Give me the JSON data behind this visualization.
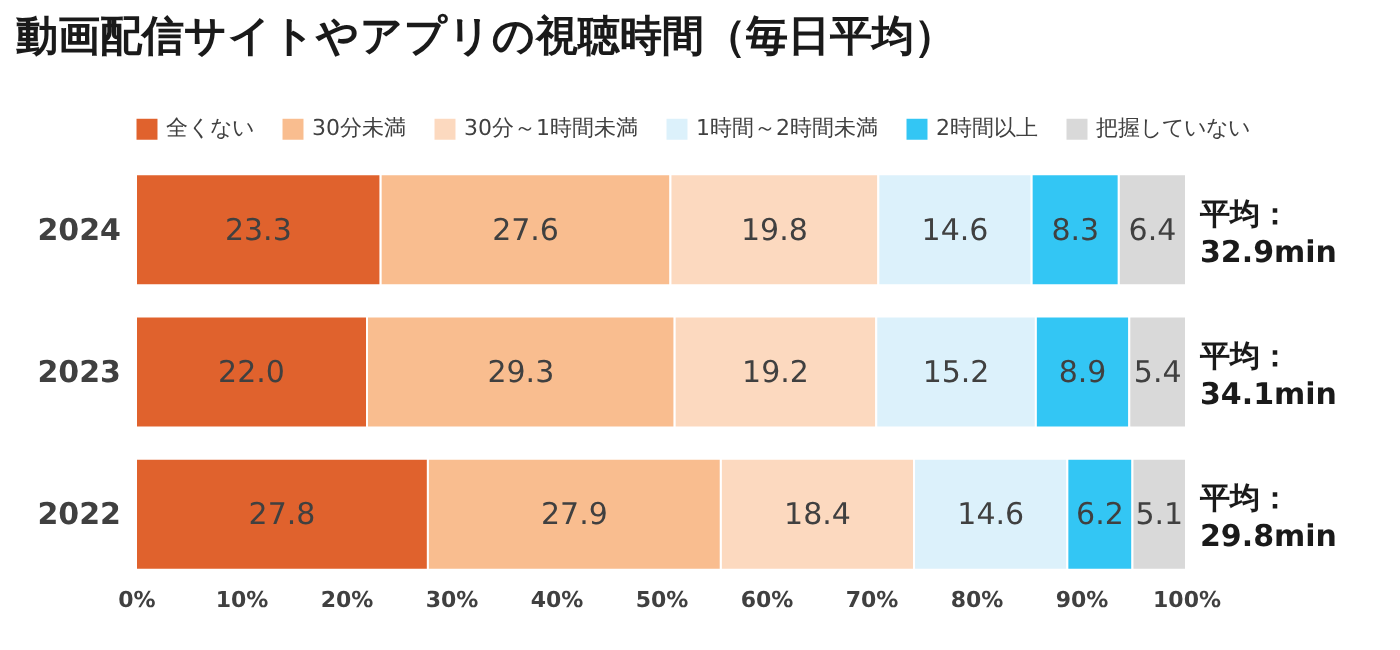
{
  "chart_data": {
    "type": "bar",
    "orientation": "horizontal",
    "stacked": true,
    "title": "動画配信サイトやアプリの視聴時間（毎日平均）",
    "categories": [
      "2024",
      "2023",
      "2022"
    ],
    "series": [
      {
        "name": "全くない",
        "color": "#e0622d",
        "values": [
          23.3,
          22.0,
          27.8
        ],
        "value_labels": [
          "23.3",
          "22.0",
          "27.8"
        ]
      },
      {
        "name": "30分未満",
        "color": "#f9bd8f",
        "values": [
          27.6,
          29.3,
          27.9
        ],
        "value_labels": [
          "27.6",
          "29.3",
          "27.9"
        ]
      },
      {
        "name": "30分～1時間未満",
        "color": "#fcd9bf",
        "values": [
          19.8,
          19.2,
          18.4
        ],
        "value_labels": [
          "19.8",
          "19.2",
          "18.4"
        ]
      },
      {
        "name": "1時間～2時間未満",
        "color": "#dcf1fb",
        "values": [
          14.6,
          15.2,
          14.6
        ],
        "value_labels": [
          "14.6",
          "15.2",
          "14.6"
        ]
      },
      {
        "name": "2時間以上",
        "color": "#33c6f4",
        "values": [
          8.3,
          8.9,
          6.2
        ],
        "value_labels": [
          "8.3",
          "8.9",
          "6.2"
        ]
      },
      {
        "name": "把握していない",
        "color": "#d9d9d9",
        "values": [
          6.4,
          5.4,
          5.1
        ],
        "value_labels": [
          "6.4",
          "5.4",
          "5.1"
        ]
      }
    ],
    "xlim": [
      0,
      100
    ],
    "xticks": [
      {
        "value": 0,
        "label": "0%"
      },
      {
        "value": 10,
        "label": "10%"
      },
      {
        "value": 20,
        "label": "20%"
      },
      {
        "value": 30,
        "label": "30%"
      },
      {
        "value": 40,
        "label": "40%"
      },
      {
        "value": 50,
        "label": "50%"
      },
      {
        "value": 60,
        "label": "60%"
      },
      {
        "value": 70,
        "label": "70%"
      },
      {
        "value": 80,
        "label": "80%"
      },
      {
        "value": 90,
        "label": "90%"
      },
      {
        "value": 100,
        "label": "100%"
      }
    ],
    "grid": false,
    "legend": "top",
    "annotations": [
      "平均：\n32.9min",
      "平均：\n34.1min",
      "平均：\n29.8min"
    ]
  }
}
